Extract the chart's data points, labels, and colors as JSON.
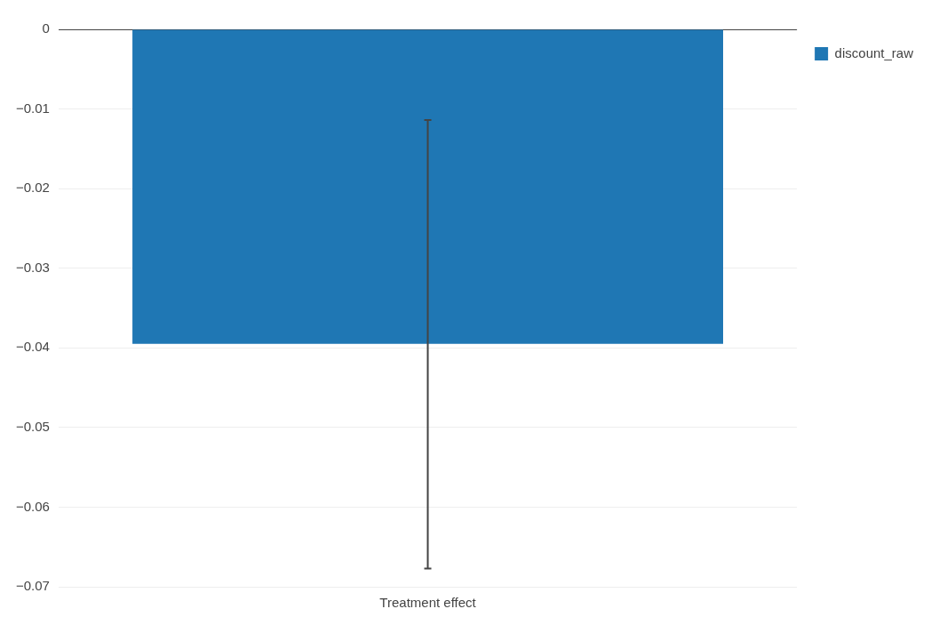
{
  "chart_data": {
    "type": "bar",
    "categories": [
      "Treatment effect"
    ],
    "series": [
      {
        "name": "discount_raw",
        "color": "#1f77b4",
        "values": [
          -0.0395
        ],
        "errors": [
          [
            -0.0677,
            -0.0114
          ]
        ]
      }
    ],
    "ylim": [
      -0.07,
      0
    ],
    "yticks": [
      {
        "value": 0,
        "label": "0"
      },
      {
        "value": -0.01,
        "label": "−0.01"
      },
      {
        "value": -0.02,
        "label": "−0.02"
      },
      {
        "value": -0.03,
        "label": "−0.03"
      },
      {
        "value": -0.04,
        "label": "−0.04"
      },
      {
        "value": -0.05,
        "label": "−0.05"
      },
      {
        "value": -0.06,
        "label": "−0.06"
      },
      {
        "value": -0.07,
        "label": "−0.07"
      }
    ],
    "grid": "y",
    "legend": "top right"
  }
}
